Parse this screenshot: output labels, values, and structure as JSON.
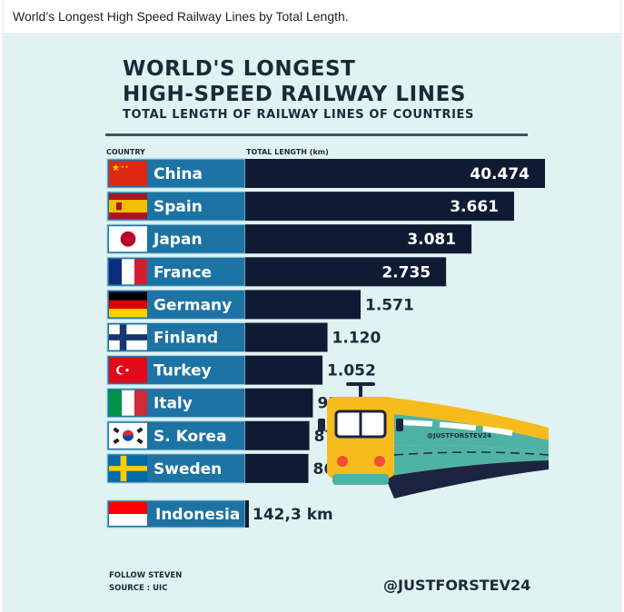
{
  "caption": "World’s Longest High Speed Railway Lines by Total Length.",
  "colors": {
    "background": "#e0f2f1",
    "label_bar": "#1d73a3",
    "value_bar": "#0f1b33",
    "text_dark": "#1b2a3a",
    "train_yellow": "#f7bc1b",
    "train_teal": "#4fb3a3"
  },
  "poster": {
    "title_line1": "WORLD'S LONGEST",
    "title_line2": "HIGH-SPEED RAILWAY LINES",
    "subtitle": "TOTAL LENGTH OF RAILWAY LINES OF COUNTRIES",
    "col_country": "COUNTRY",
    "col_length": "TOTAL LENGTH (km)",
    "footer_follow": "FOLLOW STEVEN",
    "footer_source": "SOURCE : UIC",
    "handle": "@JUSTFORSTEV24",
    "train_watermark": "@JUSTFORSTEV24"
  },
  "chart_data": {
    "type": "bar",
    "orientation": "horizontal",
    "title": "WORLD'S LONGEST HIGH-SPEED RAILWAY LINES",
    "subtitle": "TOTAL LENGTH OF RAILWAY LINES OF COUNTRIES",
    "xlabel": "TOTAL LENGTH (km)",
    "ylabel": "COUNTRY",
    "unit": "km",
    "categories": [
      "China",
      "Spain",
      "Japan",
      "France",
      "Germany",
      "Finland",
      "Turkey",
      "Italy",
      "S. Korea",
      "Sweden"
    ],
    "values": [
      40474,
      3661,
      3081,
      2735,
      1571,
      1120,
      1052,
      921,
      873,
      860
    ],
    "value_labels": [
      "40.474",
      "3.661",
      "3.081",
      "2.735",
      "1.571",
      "1.120",
      "1.052",
      "921",
      "873",
      "860"
    ],
    "flags": [
      "china",
      "spain",
      "japan",
      "france",
      "germany",
      "finland",
      "turkey",
      "italy",
      "south-korea",
      "sweden"
    ],
    "note": "China bar truncated (not to scale)",
    "highlight": {
      "category": "Indonesia",
      "value": 142.3,
      "value_label": "142,3 km",
      "flag": "indonesia"
    },
    "footer_source": "SOURCE : UIC"
  }
}
